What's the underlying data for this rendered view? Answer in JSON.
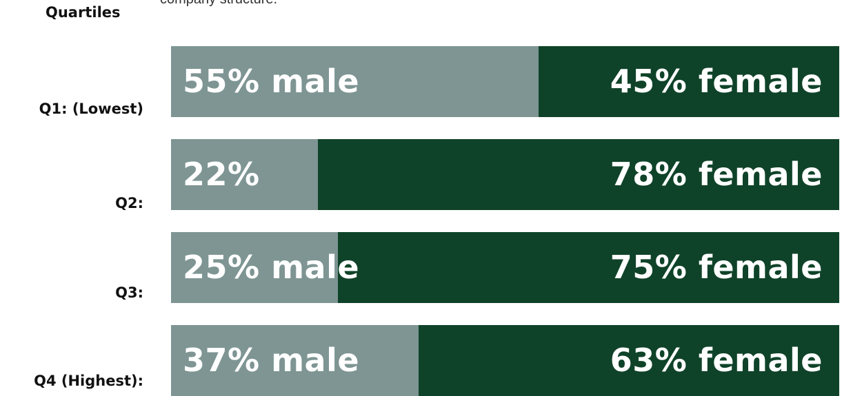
{
  "header": {
    "quartiles_label": "Quartiles",
    "intro_text": "company structure."
  },
  "colors": {
    "male": "#7e9593",
    "female": "#0f4329"
  },
  "chart_data": {
    "type": "bar",
    "stacked": true,
    "orientation": "horizontal",
    "categories": [
      "Q1: (Lowest)",
      "Q2:",
      "Q3:",
      "Q4 (Highest):"
    ],
    "series": [
      {
        "name": "male",
        "values": [
          55,
          22,
          25,
          37
        ]
      },
      {
        "name": "female",
        "values": [
          45,
          78,
          75,
          63
        ]
      }
    ],
    "bar_labels": [
      {
        "male": "55% male",
        "female": "45% female"
      },
      {
        "male": "22%",
        "female": "78% female"
      },
      {
        "male": "25% male",
        "female": "75% female"
      },
      {
        "male": "37% male",
        "female": "63% female"
      }
    ],
    "xlim": [
      0,
      100
    ]
  }
}
